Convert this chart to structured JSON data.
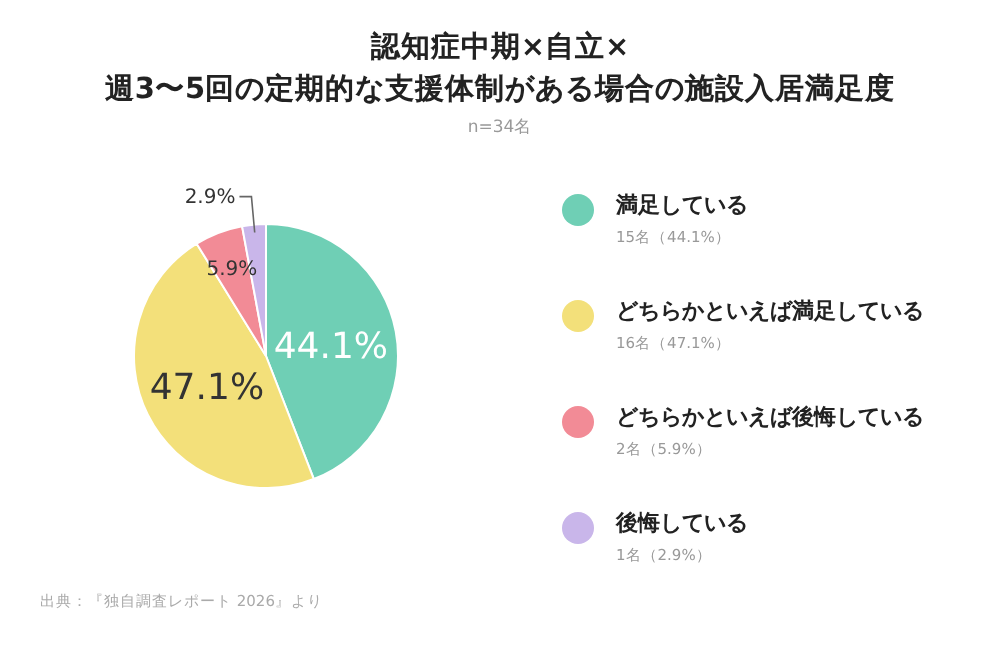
{
  "chart_data": {
    "type": "pie",
    "title": "認知症中期×自立×\n週3〜5回の定期的な支援体制がある場合の施設入居満足度",
    "subtitle": "n=34名",
    "categories": [
      "満足している",
      "どちらかといえば満足している",
      "どちらかといえば後悔している",
      "後悔している"
    ],
    "values": [
      44.1,
      47.1,
      5.9,
      2.9
    ],
    "colors": [
      "#6fcfb5",
      "#f3e07a",
      "#f28b96",
      "#c9b6ea"
    ],
    "value_labels": [
      "44.1%",
      "47.1%",
      "5.9%",
      "2.9%"
    ],
    "legend": "right",
    "annotations": [
      "15名（44.1%）",
      "16名（47.1%）",
      "2名（5.9%）",
      "1名（2.9%）",
      "出典：『独自調査レポート 2026』より"
    ]
  }
}
